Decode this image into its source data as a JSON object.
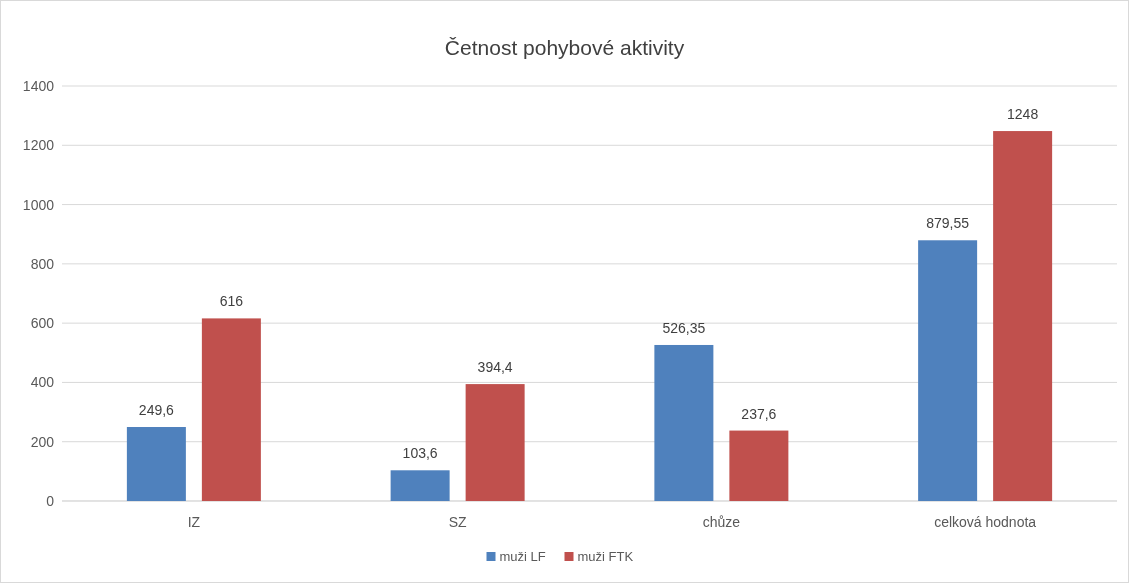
{
  "chart_data": {
    "type": "bar",
    "title": "Četnost pohybové aktivity",
    "categories": [
      "IZ",
      "SZ",
      "chůze",
      "celková hodnota"
    ],
    "series": [
      {
        "name": "muži LF",
        "color": "#4f81bd",
        "values": [
          249.6,
          103.6,
          526.35,
          879.55
        ],
        "value_labels": [
          "249,6",
          "103,6",
          "526,35",
          "879,55"
        ]
      },
      {
        "name": "muži FTK",
        "color": "#c0504d",
        "values": [
          616,
          394.4,
          237.6,
          1248
        ],
        "value_labels": [
          "616",
          "394,4",
          "237,6",
          "1248"
        ]
      }
    ],
    "ylim": [
      0,
      1400
    ],
    "yticks": [
      0,
      200,
      400,
      600,
      800,
      1000,
      1200,
      1400
    ],
    "grid": "y",
    "legend": "bottom"
  }
}
